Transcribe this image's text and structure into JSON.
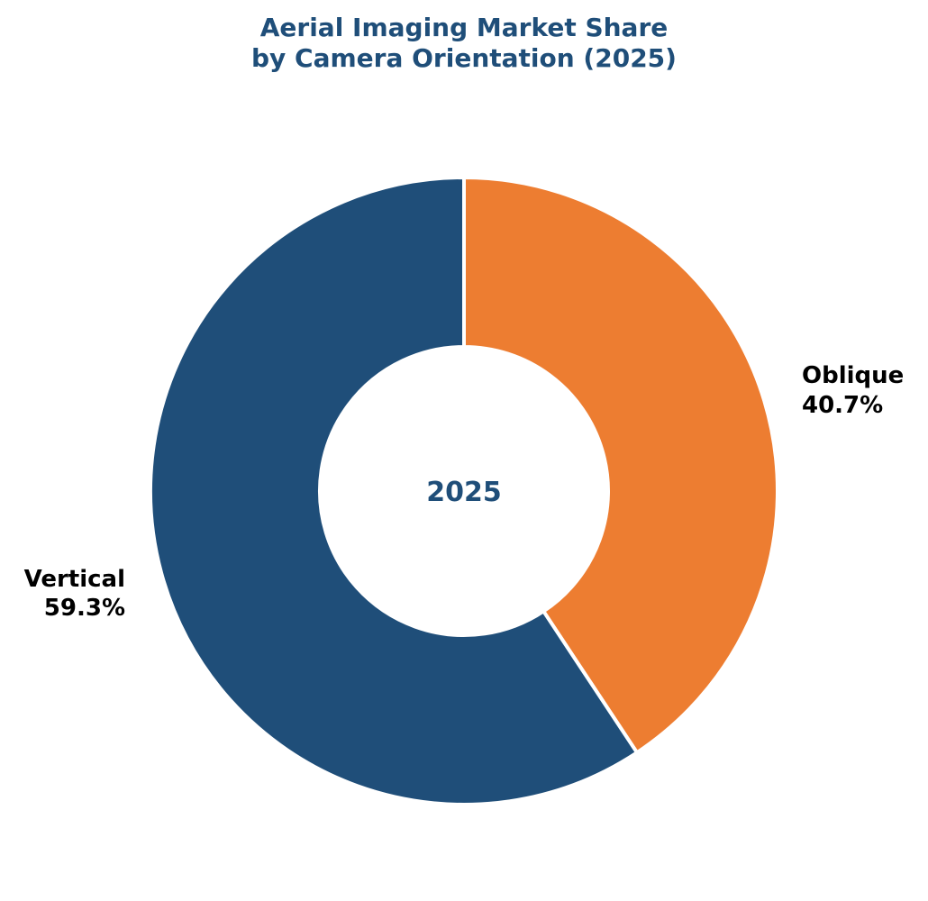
{
  "chart_data": {
    "type": "pie",
    "variant": "donut",
    "title_lines": [
      "Aerial Imaging Market Share",
      "by Camera Orientation (2025)"
    ],
    "center_text": "2025",
    "start_angle": "top",
    "direction": "clockwise",
    "slices": [
      {
        "name": "Oblique",
        "value": 40.7,
        "label": "40.7%",
        "color": "#ed7d31",
        "label_side": "right"
      },
      {
        "name": "Vertical",
        "value": 59.3,
        "label": "59.3%",
        "color": "#1f4e79",
        "label_side": "left"
      }
    ],
    "separator_color": "#ffffff",
    "title_color": "#1f4e79",
    "label_color": "#000000"
  }
}
